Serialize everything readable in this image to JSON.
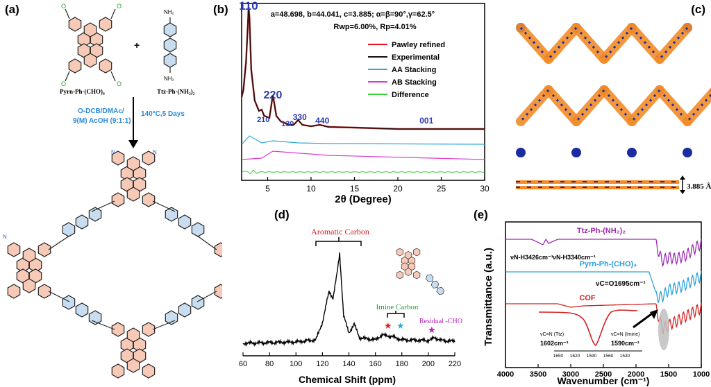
{
  "panel_a": {
    "label": "(a)",
    "reactant1": "Pyrn-Ph-(CHO)₄",
    "plus": "+",
    "reactant2": "Ttz-Ph-(NH₂)₂",
    "nh2": "NH₂",
    "solvent_line1": "O-DCB/DMAc/",
    "solvent_line2": "9(M) AcOH (9:1:1)",
    "conditions": "140°C,5 Days",
    "atom_n": "N",
    "atom_o": "O"
  },
  "panel_b": {
    "label": "(b)",
    "cell_params": "a=48.698, b=44.041, c=3.885; α=β=90°,γ=62.5°",
    "fit_params": "Rwp=6.00%, Rp=4.01%",
    "peak_labels": [
      "110",
      "220",
      "210",
      "130",
      "330",
      "440",
      "001"
    ],
    "xlabel": "2θ (Degree)",
    "legend": [
      "Pawley refined",
      "Experimental",
      "AA Stacking",
      "AB Stacking",
      "Difference"
    ],
    "colors": [
      "#e8101c",
      "#1a0d0d",
      "#2aa8d8",
      "#d83ad0",
      "#3ccd3c"
    ]
  },
  "panel_c": {
    "label": "(c)",
    "spacing": "3.885 Å"
  },
  "panel_d": {
    "label": "(d)",
    "aromatic": "Aromatic Carbon",
    "imine": "Imine Carbon",
    "residual": "Residual -CHO",
    "xlabel": "Chemical Shift (ppm)"
  },
  "panel_e": {
    "label": "(e)",
    "ylabel": "Transmittance (a.u.)",
    "xlabel": "Wavenumber (cm⁻¹)",
    "series_names": [
      "Ttz-Ph-(NH₂)₂",
      "Pyrn-Ph-(CHO)₄",
      "COF"
    ],
    "series_colors": [
      "#9a2ab0",
      "#2aa0dc",
      "#d42020"
    ],
    "ann_nh1": "νN-H3426cm⁻¹",
    "ann_nh2": "νN-H3340cm⁻¹",
    "ann_co": "νC=O1695cm⁻¹",
    "ann_cn1_top": "νC=N (Ttz)",
    "ann_cn1_val": "1602cm⁻¹",
    "ann_cn2_top": "νC=N (Imine)",
    "ann_cn2_val": "1590cm⁻¹",
    "inset_ticks": [
      "1650",
      "1620",
      "1590",
      "1560",
      "1530"
    ]
  },
  "chart_data": [
    {
      "type": "line",
      "panel": "(b)",
      "title": "",
      "xlabel": "2θ (Degree)",
      "ylabel": "",
      "xlim": [
        2,
        30
      ],
      "x_ticks": [
        5,
        10,
        15,
        20,
        25,
        30
      ],
      "series": [
        {
          "name": "Experimental",
          "x": [
            2.0,
            2.2,
            2.5,
            2.7,
            2.8,
            2.9,
            3.1,
            3.5,
            4.0,
            4.3,
            4.6,
            5.2,
            5.6,
            6.0,
            6.5,
            7.5,
            8.0,
            8.5,
            9.0,
            10,
            11,
            12,
            15,
            20,
            25,
            30
          ],
          "y": [
            60,
            70,
            110,
            160,
            190,
            175,
            100,
            55,
            40,
            42,
            33,
            30,
            63,
            33,
            25,
            20,
            20,
            27,
            20,
            18,
            20,
            17,
            16,
            14,
            14,
            14
          ]
        },
        {
          "name": "AA Stacking",
          "x": [
            2,
            2.9,
            4.3,
            5.6,
            8.5,
            12,
            30
          ],
          "y": [
            0,
            12,
            2,
            5,
            2,
            1,
            0
          ]
        },
        {
          "name": "AB Stacking",
          "x": [
            2,
            4.3,
            5.6,
            12,
            30
          ],
          "y": [
            0,
            2,
            12,
            6,
            0
          ]
        }
      ]
    },
    {
      "type": "line",
      "panel": "(d)",
      "xlabel": "Chemical Shift (ppm)",
      "xlim": [
        60,
        220
      ],
      "x_ticks": [
        60,
        80,
        100,
        120,
        140,
        160,
        180,
        200,
        220
      ],
      "series": [
        {
          "name": "",
          "x": [
            60,
            100,
            115,
            120,
            125,
            128,
            131,
            133,
            136,
            140,
            144,
            148,
            160,
            165,
            172,
            180,
            200,
            205,
            210,
            220
          ],
          "y": [
            0,
            2,
            5,
            30,
            75,
            65,
            100,
            130,
            40,
            15,
            28,
            8,
            5,
            12,
            10,
            5,
            4,
            8,
            4,
            3
          ]
        }
      ]
    },
    {
      "type": "line",
      "panel": "(e)",
      "xlabel": "Wavenumber (cm⁻¹)",
      "ylabel": "Transmittance (a.u.)",
      "xlim": [
        4000,
        1000
      ],
      "x_ticks": [
        4000,
        3500,
        3000,
        2500,
        2000,
        1500,
        1000
      ],
      "series": [
        {
          "name": "Ttz-Ph-(NH₂)₂",
          "x": [
            4000,
            3600,
            3426,
            3380,
            3340,
            3200,
            1700,
            1602,
            1500,
            1400,
            1250,
            1000
          ],
          "y": [
            0,
            0,
            -8,
            0,
            -6,
            0,
            0,
            -25,
            -20,
            -22,
            -18,
            0
          ]
        },
        {
          "name": "Pyrn-Ph-(CHO)₄",
          "x": [
            4000,
            1800,
            1695,
            1600,
            1500,
            1300,
            1000
          ],
          "y": [
            0,
            0,
            -30,
            -30,
            -20,
            -15,
            0
          ]
        },
        {
          "name": "COF",
          "x": [
            4000,
            3200,
            3000,
            2800,
            1700,
            1590,
            1500,
            1400,
            1000
          ],
          "y": [
            0,
            0,
            -5,
            -3,
            0,
            -30,
            -25,
            -20,
            0
          ]
        }
      ]
    }
  ]
}
